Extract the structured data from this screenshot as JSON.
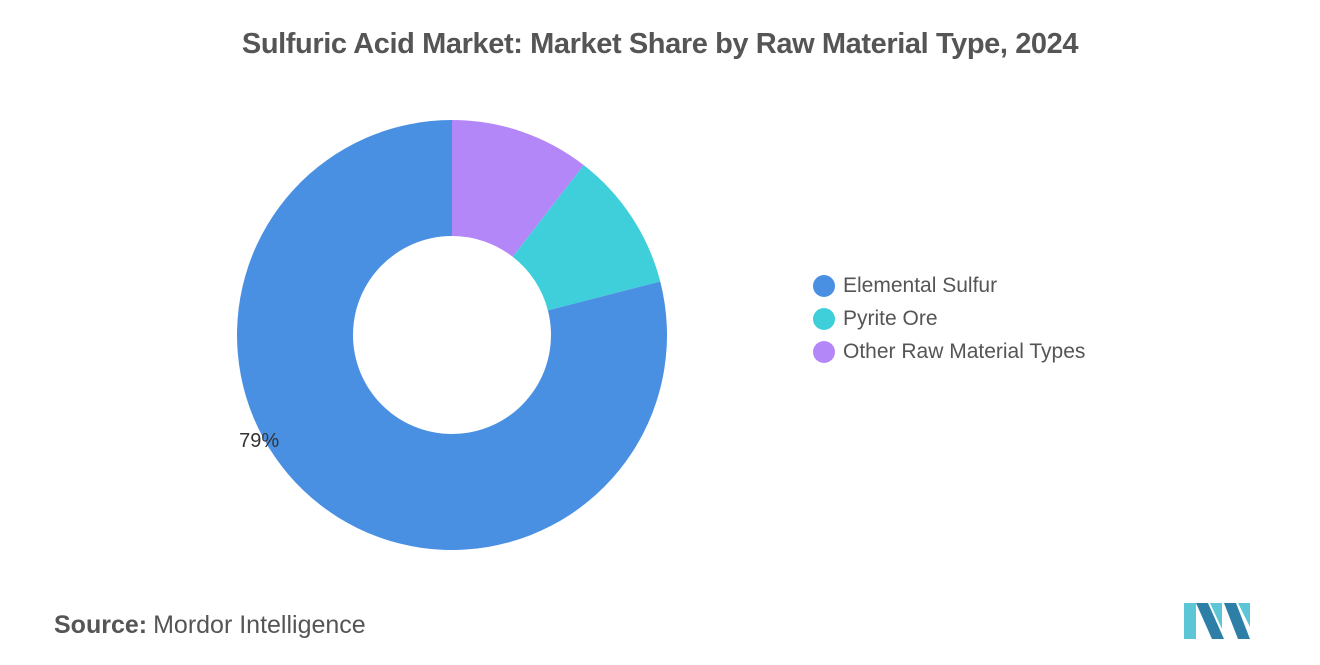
{
  "title": "Sulfuric Acid Market: Market Share by Raw Material Type, 2024",
  "chart_data": {
    "type": "pie",
    "title": "Sulfuric Acid Market: Market Share by Raw Material Type, 2024",
    "donut": true,
    "categories": [
      "Elemental Sulfur",
      "Pyrite Ore",
      "Other Raw Material Types"
    ],
    "values": [
      79,
      10.5,
      10.5
    ],
    "colors": [
      "#4A90E2",
      "#3ECFDB",
      "#B487F8"
    ],
    "data_labels": [
      "79%",
      "",
      ""
    ],
    "legend_position": "right"
  },
  "legend": [
    {
      "label": "Elemental Sulfur",
      "color": "#4A90E2"
    },
    {
      "label": "Pyrite Ore",
      "color": "#3ECFDB"
    },
    {
      "label": "Other Raw Material Types",
      "color": "#B487F8"
    }
  ],
  "source": {
    "label": "Source:",
    "text": "Mordor Intelligence"
  },
  "logo": {
    "icon": "mordor-intelligence-logo",
    "colors": [
      "#2E7FA8",
      "#5CC6D6"
    ]
  }
}
